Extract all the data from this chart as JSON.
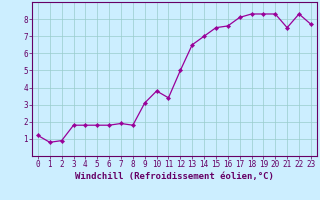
{
  "x": [
    0,
    1,
    2,
    3,
    4,
    5,
    6,
    7,
    8,
    9,
    10,
    11,
    12,
    13,
    14,
    15,
    16,
    17,
    18,
    19,
    20,
    21,
    22,
    23
  ],
  "y": [
    1.2,
    0.8,
    0.9,
    1.8,
    1.8,
    1.8,
    1.8,
    1.9,
    1.8,
    3.1,
    3.8,
    3.4,
    5.0,
    6.5,
    7.0,
    7.5,
    7.6,
    8.1,
    8.3,
    8.3,
    8.3,
    7.5,
    8.3,
    7.7
  ],
  "line_color": "#990099",
  "marker": "D",
  "marker_size": 2.2,
  "bg_color": "#cceeff",
  "grid_color": "#99cccc",
  "axis_color": "#660066",
  "xlabel": "Windchill (Refroidissement éolien,°C)",
  "ylabel": "",
  "xlim": [
    -0.5,
    23.5
  ],
  "ylim": [
    0.0,
    9.0
  ],
  "yticks": [
    1,
    2,
    3,
    4,
    5,
    6,
    7,
    8
  ],
  "xticks": [
    0,
    1,
    2,
    3,
    4,
    5,
    6,
    7,
    8,
    9,
    10,
    11,
    12,
    13,
    14,
    15,
    16,
    17,
    18,
    19,
    20,
    21,
    22,
    23
  ],
  "tick_font_size": 5.5,
  "label_font_size": 6.5
}
